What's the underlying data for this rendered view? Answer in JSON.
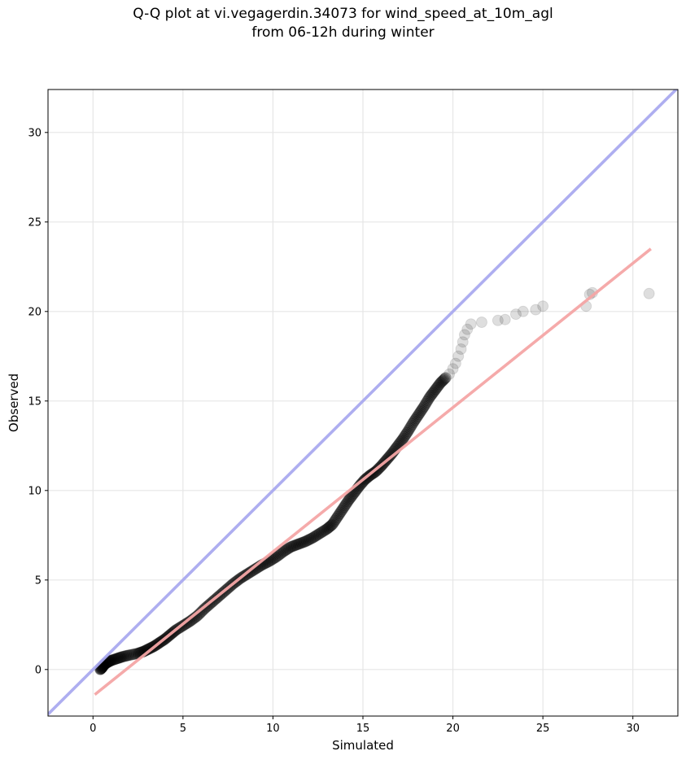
{
  "title_line1": "Q-Q plot at vi.vegagerdin.34073 for wind_speed_at_10m_agl",
  "title_line2": "from 06-12h during winter",
  "chart_data": {
    "type": "scatter",
    "xlabel": "Simulated",
    "ylabel": "Observed",
    "xlim": [
      -2.5,
      32.5
    ],
    "ylim": [
      -2.6,
      32.4
    ],
    "xticks": [
      0,
      5,
      10,
      15,
      20,
      25,
      30
    ],
    "yticks": [
      0,
      5,
      10,
      15,
      20,
      25,
      30
    ],
    "grid": true,
    "reference_lines": [
      {
        "name": "1:1 line",
        "color": "#aaaaf0",
        "points": [
          [
            -2.5,
            -2.5
          ],
          [
            32.5,
            32.5
          ]
        ]
      },
      {
        "name": "fit line",
        "color": "#f5a6a6",
        "points": [
          [
            0.1,
            -1.4
          ],
          [
            31.0,
            23.5
          ]
        ]
      }
    ],
    "point_color": "#000000",
    "points_dense": [
      [
        0.4,
        0.0
      ],
      [
        0.5,
        0.1
      ],
      [
        0.6,
        0.25
      ],
      [
        0.8,
        0.4
      ],
      [
        1.0,
        0.5
      ],
      [
        1.3,
        0.6
      ],
      [
        1.6,
        0.7
      ],
      [
        2.0,
        0.8
      ],
      [
        2.5,
        0.9
      ],
      [
        2.8,
        1.0
      ],
      [
        3.1,
        1.15
      ],
      [
        3.4,
        1.3
      ],
      [
        3.7,
        1.5
      ],
      [
        4.0,
        1.7
      ],
      [
        4.3,
        1.95
      ],
      [
        4.6,
        2.2
      ],
      [
        5.0,
        2.45
      ],
      [
        5.4,
        2.7
      ],
      [
        5.8,
        3.0
      ],
      [
        6.2,
        3.4
      ],
      [
        6.6,
        3.75
      ],
      [
        7.0,
        4.1
      ],
      [
        7.4,
        4.45
      ],
      [
        7.8,
        4.8
      ],
      [
        8.2,
        5.1
      ],
      [
        8.6,
        5.35
      ],
      [
        9.0,
        5.6
      ],
      [
        9.4,
        5.85
      ],
      [
        9.8,
        6.05
      ],
      [
        10.2,
        6.3
      ],
      [
        10.6,
        6.6
      ],
      [
        11.0,
        6.85
      ],
      [
        11.4,
        7.0
      ],
      [
        11.8,
        7.15
      ],
      [
        12.2,
        7.35
      ],
      [
        12.6,
        7.6
      ],
      [
        13.0,
        7.85
      ],
      [
        13.3,
        8.1
      ],
      [
        13.6,
        8.55
      ],
      [
        13.9,
        9.0
      ],
      [
        14.2,
        9.45
      ],
      [
        14.5,
        9.85
      ],
      [
        14.8,
        10.25
      ],
      [
        15.1,
        10.6
      ],
      [
        15.4,
        10.85
      ],
      [
        15.7,
        11.05
      ],
      [
        16.0,
        11.35
      ],
      [
        16.3,
        11.7
      ],
      [
        16.6,
        12.05
      ],
      [
        16.9,
        12.45
      ],
      [
        17.2,
        12.85
      ],
      [
        17.5,
        13.3
      ],
      [
        17.8,
        13.8
      ],
      [
        18.1,
        14.25
      ],
      [
        18.4,
        14.7
      ],
      [
        18.7,
        15.2
      ],
      [
        19.0,
        15.6
      ],
      [
        19.3,
        16.0
      ],
      [
        19.6,
        16.3
      ]
    ],
    "points_sparse": [
      [
        19.8,
        16.5
      ],
      [
        20.0,
        16.8
      ],
      [
        20.15,
        17.1
      ],
      [
        20.3,
        17.5
      ],
      [
        20.45,
        17.9
      ],
      [
        20.55,
        18.3
      ],
      [
        20.65,
        18.7
      ],
      [
        20.8,
        19.0
      ],
      [
        21.0,
        19.3
      ],
      [
        21.6,
        19.4
      ],
      [
        22.5,
        19.5
      ],
      [
        22.9,
        19.55
      ],
      [
        23.5,
        19.85
      ],
      [
        23.9,
        20.0
      ],
      [
        24.6,
        20.1
      ],
      [
        25.0,
        20.3
      ],
      [
        27.4,
        20.3
      ],
      [
        27.6,
        20.95
      ],
      [
        27.75,
        21.05
      ],
      [
        30.9,
        21.0
      ]
    ]
  }
}
